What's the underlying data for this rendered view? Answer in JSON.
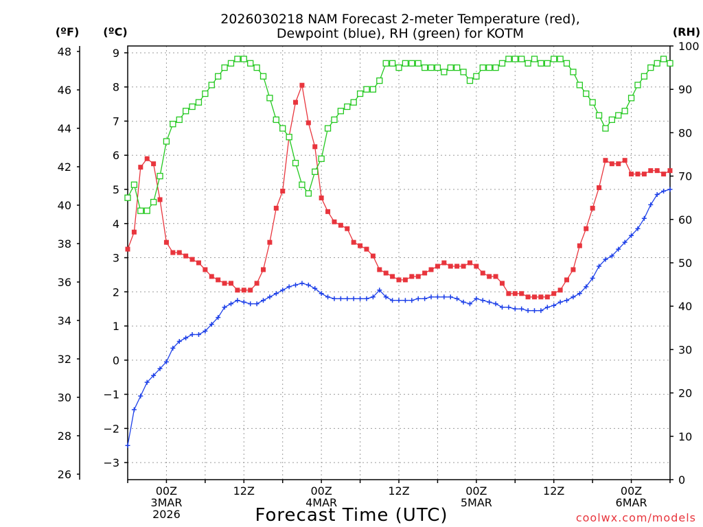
{
  "chart_data": {
    "type": "line",
    "title": "2026030218 NAM Forecast 2-meter Temperature (red),",
    "subtitle": "Dewpoint (blue), RH (green) for KOTM",
    "xlabel": "Forecast Time (UTC)",
    "credit": "coolwx.com/models",
    "units": {
      "fahrenheit": "(ºF)",
      "celsius": "(ºC)",
      "rh": "(RH)"
    },
    "x_ticks": [
      {
        "hour": 6,
        "line1": "00Z",
        "line2": "3MAR",
        "line3": "2026"
      },
      {
        "hour": 18,
        "line1": "12Z"
      },
      {
        "hour": 30,
        "line1": "00Z",
        "line2": "4MAR"
      },
      {
        "hour": 42,
        "line1": "12Z"
      },
      {
        "hour": 54,
        "line1": "00Z",
        "line2": "5MAR"
      },
      {
        "hour": 66,
        "line1": "12Z"
      },
      {
        "hour": 78,
        "line1": "00Z",
        "line2": "6MAR"
      }
    ],
    "xlim": [
      0,
      84
    ],
    "ylim_celsius": [
      -3.5,
      9.2
    ],
    "ylim_rh": [
      0,
      100
    ],
    "celsius_ticks": [
      "9",
      "8",
      "7",
      "6",
      "5",
      "4",
      "3",
      "2",
      "1",
      "0",
      "−1",
      "−2",
      "−3"
    ],
    "fahrenheit_ticks": [
      "48",
      "46",
      "44",
      "42",
      "40",
      "38",
      "36",
      "34",
      "32",
      "30",
      "28",
      "26"
    ],
    "rh_ticks": [
      "100",
      "90",
      "80",
      "70",
      "60",
      "50",
      "40",
      "30",
      "20",
      "10",
      "0"
    ],
    "series": [
      {
        "name": "Temperature",
        "unit": "°C",
        "color": "#e8353d",
        "marker": "filled-square",
        "values": [
          3.25,
          3.75,
          5.65,
          5.9,
          5.75,
          4.7,
          3.45,
          3.15,
          3.15,
          3.05,
          2.95,
          2.85,
          2.65,
          2.45,
          2.35,
          2.25,
          2.25,
          2.05,
          2.05,
          2.05,
          2.25,
          2.65,
          3.45,
          4.45,
          4.95,
          6.55,
          7.55,
          8.05,
          6.95,
          6.25,
          4.75,
          4.35,
          4.05,
          3.95,
          3.85,
          3.45,
          3.35,
          3.25,
          3.05,
          2.65,
          2.55,
          2.45,
          2.35,
          2.35,
          2.45,
          2.45,
          2.55,
          2.65,
          2.75,
          2.85,
          2.75,
          2.75,
          2.75,
          2.85,
          2.75,
          2.55,
          2.45,
          2.45,
          2.25,
          1.95,
          1.95,
          1.95,
          1.85,
          1.85,
          1.85,
          1.85,
          1.95,
          2.05,
          2.35,
          2.65,
          3.35,
          3.85,
          4.45,
          5.05,
          5.85,
          5.75,
          5.75,
          5.85,
          5.45,
          5.45,
          5.45,
          5.55,
          5.55,
          5.45,
          5.55
        ]
      },
      {
        "name": "Dewpoint",
        "unit": "°C",
        "color": "#1c3fe8",
        "marker": "plus",
        "values": [
          -2.5,
          -1.45,
          -1.05,
          -0.65,
          -0.45,
          -0.25,
          -0.05,
          0.35,
          0.55,
          0.65,
          0.75,
          0.75,
          0.85,
          1.05,
          1.25,
          1.55,
          1.65,
          1.75,
          1.7,
          1.65,
          1.65,
          1.75,
          1.85,
          1.95,
          2.05,
          2.15,
          2.2,
          2.25,
          2.2,
          2.1,
          1.95,
          1.85,
          1.8,
          1.8,
          1.8,
          1.8,
          1.8,
          1.8,
          1.85,
          2.05,
          1.85,
          1.75,
          1.75,
          1.75,
          1.75,
          1.8,
          1.8,
          1.85,
          1.85,
          1.85,
          1.85,
          1.8,
          1.7,
          1.65,
          1.8,
          1.75,
          1.7,
          1.65,
          1.55,
          1.55,
          1.5,
          1.5,
          1.45,
          1.45,
          1.45,
          1.55,
          1.6,
          1.7,
          1.75,
          1.85,
          1.95,
          2.15,
          2.4,
          2.75,
          2.95,
          3.05,
          3.25,
          3.45,
          3.65,
          3.85,
          4.15,
          4.55,
          4.85,
          4.95,
          5.0
        ]
      },
      {
        "name": "RH",
        "unit": "%",
        "color": "#22c81e",
        "marker": "open-square",
        "values": [
          65,
          68,
          62,
          62,
          64,
          70,
          78,
          82,
          83,
          85,
          86,
          87,
          89,
          91,
          93,
          95,
          96,
          97,
          97,
          96,
          95,
          93,
          88,
          83,
          81,
          79,
          73,
          68,
          66,
          71,
          74,
          81,
          83,
          85,
          86,
          87,
          89,
          90,
          90,
          92,
          96,
          96,
          95,
          96,
          96,
          96,
          95,
          95,
          95,
          94,
          95,
          95,
          94,
          92,
          93,
          95,
          95,
          95,
          96,
          97,
          97,
          97,
          96,
          97,
          96,
          96,
          97,
          97,
          96,
          94,
          91,
          89,
          87,
          84,
          81,
          83,
          84,
          85,
          88,
          91,
          93,
          95,
          96,
          97,
          96
        ]
      }
    ]
  }
}
